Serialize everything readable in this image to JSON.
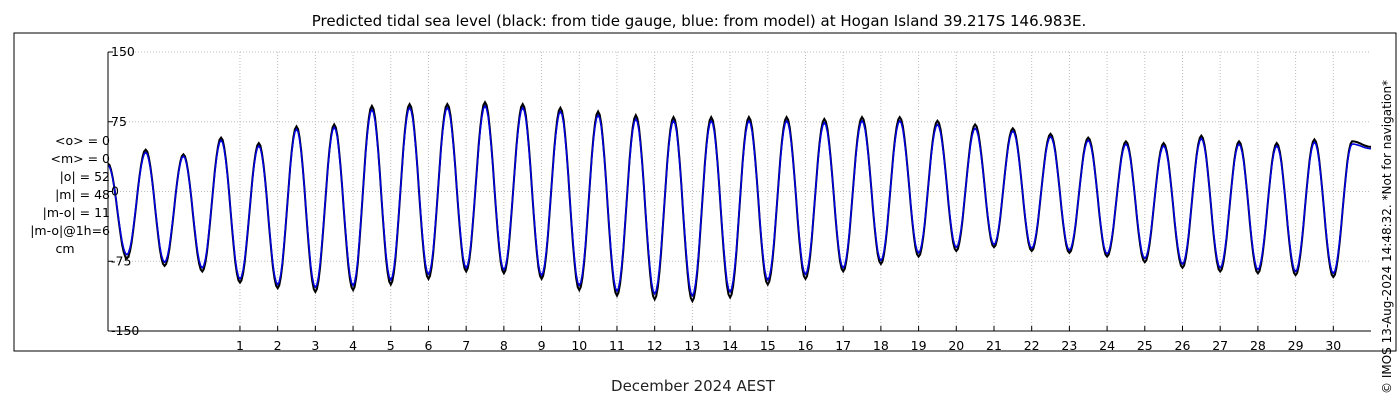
{
  "chart_data": {
    "type": "line",
    "title": "Predicted tidal sea level (black: from tide gauge, blue: from model) at Hogan Island 39.217S 146.983E.",
    "xlabel": "December 2024 AEST",
    "ylabel": "",
    "ylim": [
      -150,
      150
    ],
    "yticks": [
      150,
      75,
      0,
      -75,
      -150
    ],
    "xlim": [
      -2.5,
      31
    ],
    "xticks": [
      "1",
      "2",
      "3",
      "4",
      "5",
      "6",
      "7",
      "8",
      "9",
      "10",
      "11",
      "12",
      "13",
      "14",
      "15",
      "16",
      "17",
      "18",
      "19",
      "20",
      "21",
      "22",
      "23",
      "24",
      "25",
      "26",
      "27",
      "28",
      "29",
      "30"
    ],
    "grid": true,
    "series": [
      {
        "name": "from tide gauge",
        "color": "#000000",
        "x": [
          -2.5,
          -2.0,
          -1.5,
          -1.0,
          -0.5,
          0.0,
          0.5,
          1.0,
          1.5,
          2.0,
          2.5,
          3.0,
          3.5,
          4.0,
          4.5,
          5.0,
          5.5,
          6.0,
          6.5,
          7.0,
          7.5,
          8.0,
          8.5,
          9.0,
          9.5,
          10.0,
          10.5,
          11.0,
          11.5,
          12.0,
          12.5,
          13.0,
          13.5,
          14.0,
          14.5,
          15.0,
          15.5,
          16.0,
          16.5,
          17.0,
          17.5,
          18.0,
          18.5,
          19.0,
          19.5,
          20.0,
          20.5,
          21.0,
          21.5,
          22.0,
          22.5,
          23.0,
          23.5,
          24.0,
          24.5,
          25.0,
          25.5,
          26.0,
          26.5,
          27.0,
          27.5,
          28.0,
          28.5,
          29.0,
          29.5,
          30.0,
          30.5,
          31.0
        ],
        "y": [
          30,
          -72,
          45,
          -80,
          40,
          -86,
          58,
          -98,
          52,
          -104,
          70,
          -108,
          72,
          -106,
          92,
          -100,
          94,
          -94,
          94,
          -86,
          96,
          -88,
          94,
          -94,
          90,
          -106,
          86,
          -112,
          82,
          -116,
          80,
          -118,
          80,
          -114,
          80,
          -100,
          80,
          -94,
          78,
          -86,
          80,
          -78,
          80,
          -70,
          76,
          -64,
          72,
          -60,
          68,
          -64,
          62,
          -66,
          58,
          -70,
          54,
          -76,
          52,
          -82,
          60,
          -86,
          54,
          -88,
          52,
          -90,
          56,
          -92,
          54,
          48
        ]
      },
      {
        "name": "from model",
        "color": "#0000dd",
        "x": [
          -2.5,
          -2.0,
          -1.5,
          -1.0,
          -0.5,
          0.0,
          0.5,
          1.0,
          1.5,
          2.0,
          2.5,
          3.0,
          3.5,
          4.0,
          4.5,
          5.0,
          5.5,
          6.0,
          6.5,
          7.0,
          7.5,
          8.0,
          8.5,
          9.0,
          9.5,
          10.0,
          10.5,
          11.0,
          11.5,
          12.0,
          12.5,
          13.0,
          13.5,
          14.0,
          14.5,
          15.0,
          15.5,
          16.0,
          16.5,
          17.0,
          17.5,
          18.0,
          18.5,
          19.0,
          19.5,
          20.0,
          20.5,
          21.0,
          21.5,
          22.0,
          22.5,
          23.0,
          23.5,
          24.0,
          24.5,
          25.0,
          25.5,
          26.0,
          26.5,
          27.0,
          27.5,
          28.0,
          28.5,
          29.0,
          29.5,
          30.0,
          30.5,
          31.0
        ],
        "y": [
          28,
          -68,
          42,
          -76,
          38,
          -82,
          55,
          -94,
          49,
          -100,
          67,
          -103,
          69,
          -101,
          88,
          -95,
          90,
          -89,
          90,
          -82,
          92,
          -84,
          90,
          -90,
          86,
          -101,
          82,
          -107,
          78,
          -110,
          76,
          -112,
          76,
          -108,
          76,
          -95,
          76,
          -89,
          74,
          -82,
          76,
          -74,
          76,
          -66,
          72,
          -60,
          68,
          -57,
          65,
          -61,
          59,
          -63,
          55,
          -67,
          51,
          -72,
          49,
          -78,
          57,
          -82,
          51,
          -84,
          49,
          -86,
          53,
          -88,
          51,
          46
        ]
      }
    ]
  },
  "stats": [
    "<o> = 0",
    "<m> = 0",
    "|o| = 52",
    "|m| = 48",
    "|m-o| = 11",
    "|m-o|@1h=6",
    "cm"
  ],
  "side_note": "© IMOS 13-Aug-2024 14:48:32. *Not for navigation*"
}
